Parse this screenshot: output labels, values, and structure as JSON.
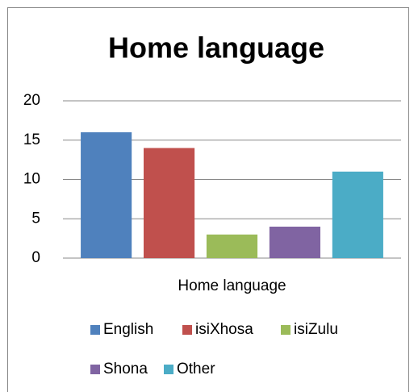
{
  "chart_data": {
    "type": "bar",
    "title": "Home language",
    "categories": [
      "Home language"
    ],
    "series": [
      {
        "name": "English",
        "color": "#4f81bd",
        "values": [
          16
        ]
      },
      {
        "name": "isiXhosa",
        "color": "#c0504d",
        "values": [
          14
        ]
      },
      {
        "name": "isiZulu",
        "color": "#9bbb59",
        "values": [
          3
        ]
      },
      {
        "name": "Shona",
        "color": "#8064a2",
        "values": [
          4
        ]
      },
      {
        "name": "Other",
        "color": "#4bacc6",
        "values": [
          11
        ]
      }
    ],
    "ylim": [
      0,
      20
    ],
    "yticks": [
      0,
      5,
      10,
      15,
      20
    ],
    "grid": true,
    "legend": "bottom"
  }
}
